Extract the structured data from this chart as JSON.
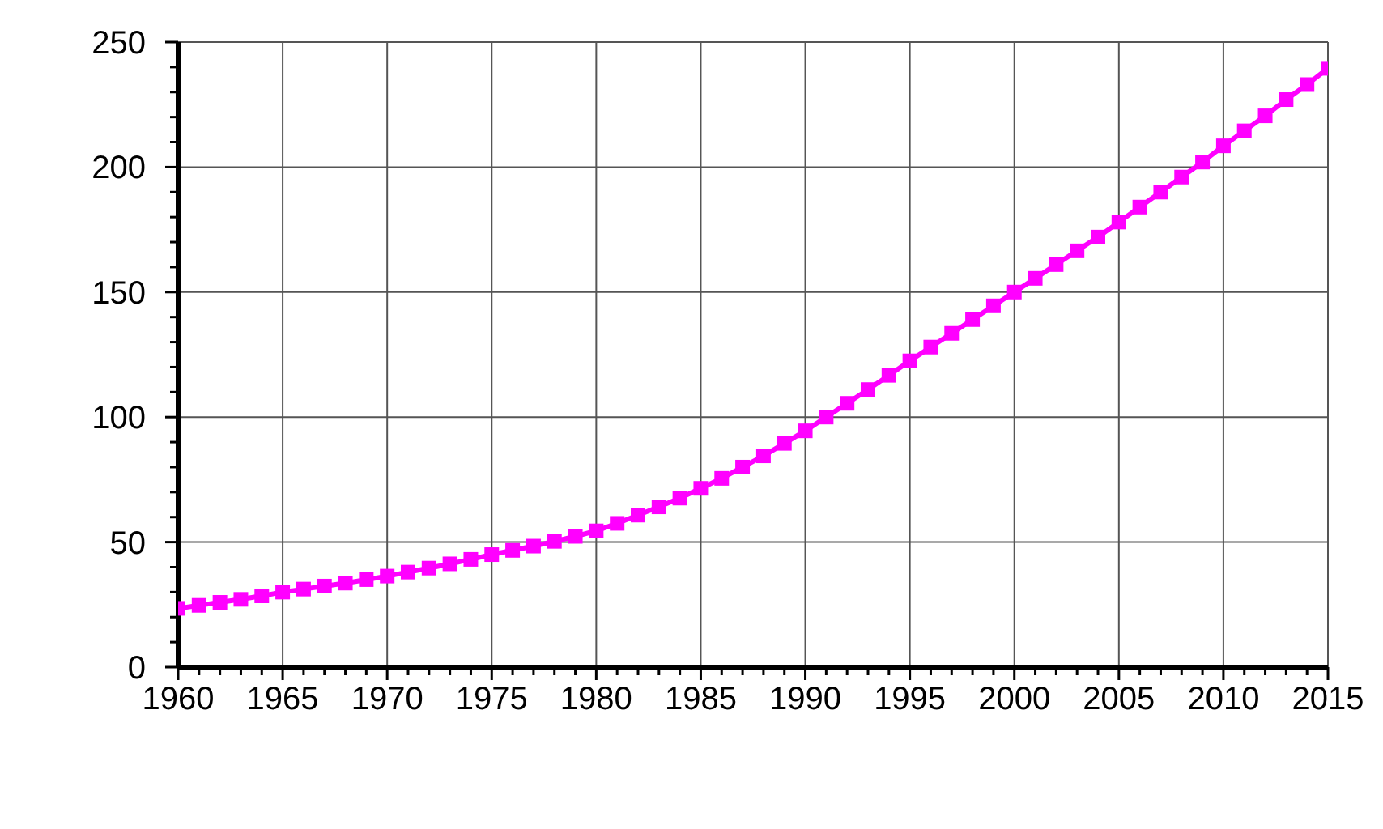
{
  "chart_data": {
    "type": "line",
    "x": [
      1960,
      1961,
      1962,
      1963,
      1964,
      1965,
      1966,
      1967,
      1968,
      1969,
      1970,
      1971,
      1972,
      1973,
      1974,
      1975,
      1976,
      1977,
      1978,
      1979,
      1980,
      1981,
      1982,
      1983,
      1984,
      1985,
      1986,
      1987,
      1988,
      1989,
      1990,
      1991,
      1992,
      1993,
      1994,
      1995,
      1996,
      1997,
      1998,
      1999,
      2000,
      2001,
      2002,
      2003,
      2004,
      2005,
      2006,
      2007,
      2008,
      2009,
      2010,
      2011,
      2012,
      2013,
      2014,
      2015
    ],
    "series": [
      {
        "color": "#ff00ff",
        "values": [
          23.5,
          24.7,
          25.9,
          27.1,
          28.5,
          30,
          31.2,
          32.4,
          33.6,
          35,
          36.4,
          38,
          39.6,
          41.3,
          43.1,
          45,
          46.7,
          48.4,
          50.3,
          52.3,
          54.5,
          57.5,
          60.8,
          64.1,
          67.6,
          71.5,
          75.5,
          80,
          84.5,
          89.5,
          94.5,
          100,
          105.5,
          111,
          116.7,
          122.5,
          128,
          133.5,
          139,
          144.5,
          150,
          155.5,
          161,
          166.5,
          172,
          178,
          184,
          190,
          196,
          202,
          208.5,
          214.5,
          220.5,
          227,
          233,
          239.5
        ]
      }
    ],
    "xlim": [
      1960,
      2015
    ],
    "xticks": [
      1960,
      {
        "value": 1961,
        "label": null
      },
      {
        "value": 1962,
        "label": null
      },
      {
        "value": 1963,
        "label": null
      },
      {
        "value": 1964,
        "label": null
      },
      1965,
      {
        "value": 1966,
        "label": null
      },
      {
        "value": 1967,
        "label": null
      },
      {
        "value": 1968,
        "label": null
      },
      {
        "value": 1969,
        "label": null
      },
      1970,
      {
        "value": 1971,
        "label": null
      },
      {
        "value": 1972,
        "label": null
      },
      {
        "value": 1973,
        "label": null
      },
      {
        "value": 1974,
        "label": null
      },
      1975,
      {
        "value": 1976,
        "label": null
      },
      {
        "value": 1977,
        "label": null
      },
      {
        "value": 1978,
        "label": null
      },
      {
        "value": 1979,
        "label": null
      },
      1980,
      {
        "value": 1981,
        "label": null
      },
      {
        "value": 1982,
        "label": null
      },
      {
        "value": 1983,
        "label": null
      },
      {
        "value": 1984,
        "label": null
      },
      1985,
      {
        "value": 1986,
        "label": null
      },
      {
        "value": 1987,
        "label": null
      },
      {
        "value": 1988,
        "label": null
      },
      {
        "value": 1989,
        "label": null
      },
      1990,
      {
        "value": 1991,
        "label": null
      },
      {
        "value": 1992,
        "label": null
      },
      {
        "value": 1993,
        "label": null
      },
      {
        "value": 1994,
        "label": null
      },
      1995,
      {
        "value": 1996,
        "label": null
      },
      {
        "value": 1997,
        "label": null
      },
      {
        "value": 1998,
        "label": null
      },
      {
        "value": 1999,
        "label": null
      },
      2000,
      {
        "value": 2001,
        "label": null
      },
      {
        "value": 2002,
        "label": null
      },
      {
        "value": 2003,
        "label": null
      },
      {
        "value": 2004,
        "label": null
      },
      2005,
      {
        "value": 2006,
        "label": null
      },
      {
        "value": 2007,
        "label": null
      },
      {
        "value": 2008,
        "label": null
      },
      {
        "value": 2009,
        "label": null
      },
      2010,
      {
        "value": 2011,
        "label": null
      },
      {
        "value": 2012,
        "label": null
      },
      {
        "value": 2013,
        "label": null
      },
      {
        "value": 2014,
        "label": null
      },
      2015
    ],
    "ylim": [
      0,
      250
    ],
    "yticks": [
      0,
      {
        "value": 10,
        "label": null
      },
      {
        "value": 20,
        "label": null
      },
      {
        "value": 30,
        "label": null
      },
      {
        "value": 40,
        "label": null
      },
      50,
      {
        "value": 60,
        "label": null
      },
      {
        "value": 70,
        "label": null
      },
      {
        "value": 80,
        "label": null
      },
      {
        "value": 90,
        "label": null
      },
      100,
      {
        "value": 110,
        "label": null
      },
      {
        "value": 120,
        "label": null
      },
      {
        "value": 130,
        "label": null
      },
      {
        "value": 140,
        "label": null
      },
      150,
      {
        "value": 160,
        "label": null
      },
      {
        "value": 170,
        "label": null
      },
      {
        "value": 180,
        "label": null
      },
      {
        "value": 190,
        "label": null
      },
      200,
      {
        "value": 210,
        "label": null
      },
      {
        "value": 220,
        "label": null
      },
      {
        "value": 230,
        "label": null
      },
      {
        "value": 240,
        "label": null
      },
      250
    ],
    "grid": true,
    "marker": "square",
    "line_style": "solid"
  }
}
